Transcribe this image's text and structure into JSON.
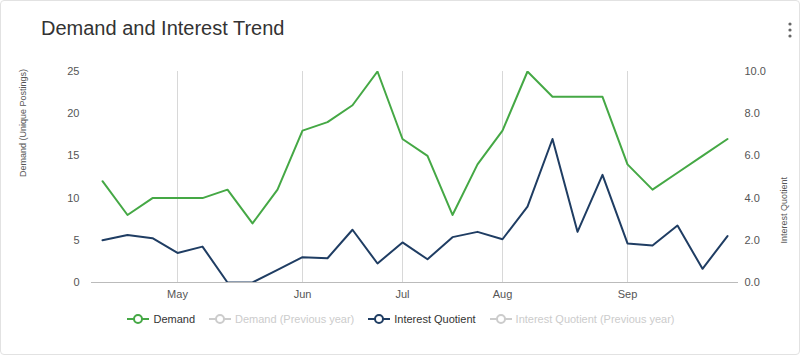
{
  "chart_data": {
    "type": "line",
    "title": "Demand and Interest Trend",
    "categories": [
      null,
      null,
      null,
      "May",
      null,
      null,
      null,
      null,
      "Jun",
      null,
      null,
      null,
      "Jul",
      null,
      null,
      null,
      "Aug",
      null,
      null,
      null,
      null,
      "Sep",
      null,
      null,
      null,
      null
    ],
    "ylabel": "Demand (Unique Postings)",
    "y2label": "Interest Quotient",
    "ylim": [
      0,
      25
    ],
    "yticks": [
      0,
      5,
      10,
      15,
      20,
      25
    ],
    "y2lim": [
      0,
      10
    ],
    "y2ticks": [
      {
        "value": 0,
        "label": "0.0"
      },
      {
        "value": 2,
        "label": "2.0"
      },
      {
        "value": 4,
        "label": "4.0"
      },
      {
        "value": 6,
        "label": "6.0"
      },
      {
        "value": 8,
        "label": "8.0"
      },
      {
        "value": 10,
        "label": "10.0"
      }
    ],
    "grid": "x",
    "legend": "bottom",
    "series": [
      {
        "name": "Demand",
        "color": "#45a845",
        "axis": "y",
        "values": [
          12,
          8,
          10,
          10,
          10,
          11,
          7,
          11,
          18,
          19,
          21,
          25,
          17,
          15,
          8,
          14,
          18,
          25,
          22,
          22,
          22,
          14,
          11,
          13,
          15,
          17
        ]
      },
      {
        "name": "Demand (Previous year)",
        "color": "#cccccc",
        "axis": "y",
        "values": [
          null,
          null,
          null,
          null,
          null,
          null,
          null,
          null,
          null,
          null,
          null,
          null,
          null,
          null,
          null,
          null,
          null,
          null,
          null,
          null,
          null,
          null,
          null,
          null,
          null,
          null
        ]
      },
      {
        "name": "Interest Quotient",
        "color": "#1f3d63",
        "axis": "y2",
        "values": [
          2.0,
          2.25,
          2.1,
          1.4,
          1.7,
          0,
          0,
          0.6,
          1.2,
          1.15,
          2.5,
          0.9,
          1.9,
          1.1,
          2.15,
          2.4,
          2.05,
          3.6,
          6.8,
          2.4,
          5.1,
          1.85,
          1.75,
          2.7,
          0.65,
          2.2
        ]
      },
      {
        "name": "Interest Quotient (Previous year)",
        "color": "#cccccc",
        "axis": "y2",
        "values": [
          null,
          null,
          null,
          null,
          null,
          null,
          null,
          null,
          null,
          null,
          null,
          null,
          null,
          null,
          null,
          null,
          null,
          null,
          null,
          null,
          null,
          null,
          null,
          null,
          null,
          null
        ]
      }
    ]
  }
}
